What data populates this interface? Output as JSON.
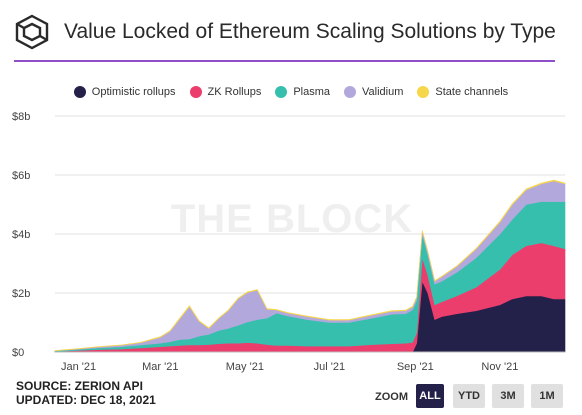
{
  "header": {
    "title": "Value Locked of Ethereum Scaling Solutions by Type",
    "logo_icon": "the-block-cube-icon",
    "accent": "#8f4fc8"
  },
  "watermark": "THE BLOCK",
  "footer": {
    "source": "SOURCE: ZERION API",
    "updated": "UPDATED: DEC 18, 2021"
  },
  "zoom": {
    "label": "ZOOM",
    "buttons": [
      "ALL",
      "YTD",
      "3M",
      "1M"
    ],
    "active": "ALL"
  },
  "chart_data": {
    "type": "area",
    "stacked": true,
    "title": "Value Locked of Ethereum Scaling Solutions by Type",
    "x_unit": "date",
    "y_unit": "USD",
    "ylim": [
      0,
      8000000000
    ],
    "y_ticks": [
      "$0",
      "$2b",
      "$4b",
      "$6b",
      "$8b"
    ],
    "y_tick_values": [
      0,
      2000000000,
      4000000000,
      6000000000,
      8000000000
    ],
    "x_ticks": [
      "Jan '21",
      "Mar '21",
      "May '21",
      "Jul '21",
      "Sep '21",
      "Nov '21"
    ],
    "x_tick_dates": [
      "2021-01-01",
      "2021-03-01",
      "2021-05-01",
      "2021-07-01",
      "2021-09-01",
      "2021-11-01"
    ],
    "x_range": [
      "2020-12-15",
      "2021-12-18"
    ],
    "grid": true,
    "legend_position": "top",
    "dates": [
      "2020-12-15",
      "2021-01-01",
      "2021-01-15",
      "2021-02-01",
      "2021-02-15",
      "2021-03-01",
      "2021-03-08",
      "2021-03-15",
      "2021-03-22",
      "2021-03-29",
      "2021-04-05",
      "2021-04-12",
      "2021-04-19",
      "2021-04-26",
      "2021-05-03",
      "2021-05-10",
      "2021-05-17",
      "2021-05-24",
      "2021-06-01",
      "2021-06-15",
      "2021-07-01",
      "2021-07-15",
      "2021-08-01",
      "2021-08-15",
      "2021-08-25",
      "2021-08-30",
      "2021-09-02",
      "2021-09-06",
      "2021-09-10",
      "2021-09-15",
      "2021-09-20",
      "2021-10-01",
      "2021-10-15",
      "2021-11-01",
      "2021-11-10",
      "2021-11-20",
      "2021-12-01",
      "2021-12-10",
      "2021-12-18"
    ],
    "series": [
      {
        "name": "Optimistic rollups",
        "color": "#23204a",
        "values": [
          0.0,
          0.0,
          0.0,
          0.0,
          0.0,
          0.0,
          0.0,
          0.0,
          0.0,
          0.0,
          0.0,
          0.0,
          0.0,
          0.0,
          0.0,
          0.0,
          0.0,
          0.0,
          0.0,
          0.0,
          0.0,
          0.0,
          0.0,
          0.0,
          0.0,
          0.0,
          0.3,
          2.4,
          2.0,
          1.1,
          1.2,
          1.3,
          1.4,
          1.6,
          1.8,
          1.9,
          1.9,
          1.8,
          1.8
        ]
      },
      {
        "name": "ZK Rollups",
        "color": "#ec3e6c",
        "values": [
          0.02,
          0.05,
          0.08,
          0.1,
          0.14,
          0.18,
          0.2,
          0.22,
          0.24,
          0.24,
          0.25,
          0.28,
          0.3,
          0.3,
          0.32,
          0.3,
          0.25,
          0.22,
          0.22,
          0.2,
          0.2,
          0.2,
          0.25,
          0.28,
          0.3,
          0.33,
          0.35,
          0.8,
          0.6,
          0.5,
          0.5,
          0.6,
          0.8,
          1.2,
          1.5,
          1.7,
          1.8,
          1.8,
          1.7
        ]
      },
      {
        "name": "Plasma",
        "color": "#37bfae",
        "values": [
          0.02,
          0.04,
          0.06,
          0.08,
          0.1,
          0.12,
          0.15,
          0.2,
          0.2,
          0.3,
          0.35,
          0.45,
          0.5,
          0.6,
          0.7,
          0.8,
          0.9,
          1.1,
          1.0,
          0.9,
          0.8,
          0.8,
          0.9,
          1.0,
          1.0,
          1.1,
          1.1,
          0.8,
          0.7,
          0.7,
          0.7,
          0.8,
          1.0,
          1.2,
          1.2,
          1.4,
          1.4,
          1.5,
          1.6
        ]
      },
      {
        "name": "Validium",
        "color": "#b3a8dc",
        "values": [
          0.0,
          0.02,
          0.03,
          0.05,
          0.08,
          0.2,
          0.35,
          0.7,
          1.1,
          0.5,
          0.2,
          0.4,
          0.6,
          0.9,
          1.0,
          1.0,
          0.3,
          0.1,
          0.1,
          0.1,
          0.08,
          0.08,
          0.1,
          0.1,
          0.1,
          0.1,
          0.1,
          0.1,
          0.1,
          0.1,
          0.15,
          0.2,
          0.3,
          0.4,
          0.5,
          0.5,
          0.6,
          0.7,
          0.6
        ]
      },
      {
        "name": "State channels",
        "color": "#f6d64a",
        "values": [
          0.01,
          0.01,
          0.01,
          0.01,
          0.01,
          0.02,
          0.02,
          0.03,
          0.03,
          0.02,
          0.02,
          0.02,
          0.02,
          0.02,
          0.02,
          0.02,
          0.02,
          0.02,
          0.02,
          0.02,
          0.02,
          0.02,
          0.02,
          0.02,
          0.02,
          0.02,
          0.02,
          0.02,
          0.02,
          0.02,
          0.02,
          0.02,
          0.02,
          0.03,
          0.03,
          0.03,
          0.03,
          0.03,
          0.03
        ]
      }
    ],
    "value_scale_note_unit": "billion USD"
  }
}
